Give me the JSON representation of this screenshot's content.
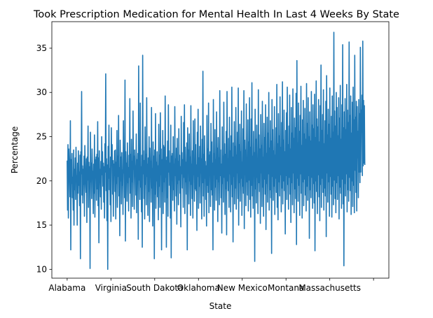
{
  "chart_data": {
    "type": "line",
    "title": "Took Prescription Medication for Mental Health In Last 4 Weeks By State",
    "xlabel": "State",
    "ylabel": "Percentage",
    "ylim": [
      9,
      38
    ],
    "yticks": [
      10,
      15,
      20,
      25,
      30,
      35
    ],
    "x_tick_labels": [
      "Alabama",
      "Virginia",
      "South Dakota",
      "Oklahoma",
      "New Mexico",
      "Montana",
      "Massachusetts",
      ""
    ],
    "x_tick_positions": [
      0,
      200,
      400,
      600,
      800,
      1000,
      1200,
      1400
    ],
    "xlim": [
      -70,
      1470
    ],
    "grid": false,
    "legend": "none",
    "line_color": "#1f77b4",
    "series": [
      {
        "values": [
          22.3,
          16.7,
          24.1,
          15.8,
          23.6,
          21.8,
          20.7,
          18.2,
          26.8,
          12.2,
          22.4,
          19.7,
          23.1,
          18.1,
          20.4,
          16.7,
          23.5,
          15.0,
          21.3,
          19.0,
          22.6,
          17.9,
          23.8,
          20.2,
          20.6,
          15.0,
          22.0,
          18.6,
          23.4,
          19.5,
          21.0,
          17.2,
          22.9,
          11.2,
          23.3,
          20.8,
          30.1,
          18.4,
          21.7,
          17.5,
          21.3,
          19.6,
          22.8,
          16.0,
          24.0,
          21.4,
          20.0,
          18.7,
          22.5,
          15.3,
          22.7,
          20.1,
          26.2,
          17.0,
          22.1,
          19.3,
          21.6,
          10.1,
          25.5,
          19.9,
          22.0,
          18.0,
          23.6,
          20.6,
          21.1,
          16.3,
          21.9,
          18.6,
          25.2,
          15.9,
          22.4,
          20.4,
          22.7,
          17.8,
          23.0,
          19.1,
          26.7,
          17.2,
          22.6,
          13.0,
          23.4,
          19.8,
          21.3,
          18.2,
          22.2,
          16.8,
          25.0,
          20.7,
          23.3,
          19.4,
          22.0,
          17.6,
          21.6,
          15.8,
          24.2,
          21.0,
          32.1,
          18.9,
          22.5,
          15.5,
          21.8,
          10.0,
          23.9,
          20.3,
          26.3,
          19.0,
          21.4,
          17.3,
          22.7,
          15.4,
          26.0,
          21.8,
          24.1,
          18.5,
          22.3,
          16.0,
          21.9,
          20.6,
          23.4,
          18.8,
          23.5,
          15.7,
          22.1,
          19.7,
          25.7,
          17.0,
          22.8,
          20.5,
          27.4,
          18.3,
          21.5,
          13.8,
          24.6,
          20.0,
          22.7,
          17.4,
          23.2,
          19.5,
          21.2,
          16.2,
          26.8,
          20.9,
          22.4,
          18.1,
          31.4,
          13.2,
          23.3,
          20.2,
          22.0,
          17.7,
          24.3,
          19.8,
          21.5,
          16.6,
          22.9,
          20.4,
          29.3,
          18.6,
          23.0,
          15.8,
          24.7,
          19.9,
          22.2,
          17.1,
          27.9,
          21.3,
          22.8,
          16.8,
          23.5,
          20.6,
          21.7,
          18.4,
          25.3,
          16.4,
          22.4,
          19.7,
          23.1,
          13.4,
          33.0,
          20.1,
          22.7,
          17.9,
          28.8,
          19.3,
          21.6,
          16.5,
          22.9,
          12.5,
          34.2,
          20.8,
          23.4,
          18.0,
          22.3,
          15.7,
          26.1,
          19.6,
          23.0,
          17.3,
          29.4,
          20.5,
          21.9,
          16.1,
          22.6,
          18.8,
          25.0,
          15.4,
          23.7,
          20.9,
          22.2,
          17.6,
          28.3,
          19.2,
          21.4,
          14.9,
          24.4,
          20.3,
          22.8,
          11.2,
          23.5,
          18.5,
          27.6,
          16.9,
          22.1,
          20.0,
          23.3,
          18.2,
          21.7,
          15.6,
          26.4,
          19.4,
          22.9,
          17.0,
          27.7,
          20.7,
          23.6,
          12.2,
          22.4,
          18.8,
          25.7,
          16.3,
          24.0,
          19.9,
          23.8,
          17.6,
          29.6,
          20.4,
          22.3,
          12.5,
          22.7,
          18.1,
          24.5,
          16.0,
          28.6,
          21.0,
          23.4,
          19.5,
          22.0,
          15.8,
          26.3,
          11.3,
          22.8,
          20.2,
          23.1,
          17.8,
          25.0,
          19.0,
          21.9,
          16.6,
          28.4,
          20.6,
          22.5,
          18.3,
          23.7,
          15.1,
          24.8,
          19.7,
          22.2,
          17.3,
          25.9,
          20.1,
          22.9,
          18.6,
          21.6,
          14.8,
          27.3,
          20.8,
          23.2,
          19.2,
          22.4,
          17.0,
          26.6,
          20.4,
          28.6,
          16.3,
          23.8,
          19.9,
          22.1,
          18.5,
          24.3,
          12.2,
          26.0,
          21.1,
          23.5,
          17.4,
          25.3,
          20.0,
          22.7,
          16.1,
          28.5,
          19.6,
          21.9,
          18.0,
          23.4,
          15.8,
          26.8,
          20.7,
          22.3,
          17.7,
          27.0,
          19.1,
          24.1,
          18.9,
          21.8,
          14.4,
          25.5,
          20.5,
          28.1,
          16.9,
          22.6,
          19.4,
          23.9,
          17.5,
          26.2,
          20.9,
          22.5,
          15.7,
          24.7,
          19.8,
          32.4,
          18.3,
          23.0,
          16.0,
          25.1,
          20.3,
          22.2,
          17.9,
          21.7,
          14.9,
          27.4,
          19.5,
          23.6,
          18.7,
          28.8,
          16.4,
          22.9,
          20.8,
          23.3,
          17.1,
          26.5,
          19.0,
          24.4,
          18.4,
          22.0,
          12.2,
          29.2,
          20.7,
          23.1,
          16.7,
          25.8,
          19.3,
          22.4,
          17.8,
          27.8,
          20.2,
          23.7,
          15.4,
          24.9,
          19.9,
          22.6,
          17.3,
          30.2,
          20.6,
          23.5,
          18.1,
          21.9,
          14.1,
          26.1,
          19.7,
          22.8,
          17.6,
          28.9,
          20.4,
          24.2,
          16.2,
          23.0,
          19.1,
          25.6,
          13.9,
          30.1,
          20.0,
          22.5,
          18.9,
          24.8,
          17.0,
          27.2,
          20.8,
          23.4,
          16.5,
          25.1,
          19.6,
          30.6,
          18.2,
          22.7,
          13.1,
          24.3,
          20.5,
          26.7,
          17.4,
          23.9,
          19.2,
          28.3,
          16.8,
          22.9,
          20.9,
          25.5,
          18.0,
          30.5,
          15.0,
          24.1,
          19.8,
          26.4,
          17.7,
          23.3,
          20.3,
          27.9,
          16.1,
          22.1,
          19.4,
          25.9,
          18.6,
          30.2,
          14.6,
          24.6,
          20.7,
          23.5,
          17.2,
          28.7,
          19.9,
          22.6,
          18.4,
          26.9,
          16.6,
          24.4,
          20.1,
          29.4,
          17.9,
          23.8,
          15.9,
          27.0,
          19.5,
          31.1,
          18.3,
          22.8,
          16.9,
          25.6,
          20.6,
          23.2,
          10.9,
          28.1,
          19.1,
          24.7,
          17.5,
          26.3,
          20.4,
          22.4,
          16.3,
          30.3,
          19.8,
          25.2,
          18.8,
          23.6,
          15.2,
          27.5,
          20.9,
          24.0,
          17.1,
          29.0,
          19.3,
          22.7,
          16.0,
          26.5,
          20.2,
          24.9,
          18.5,
          28.6,
          14.5,
          23.1,
          19.7,
          27.2,
          17.6,
          25.4,
          20.8,
          30.0,
          16.7,
          23.7,
          19.0,
          26.8,
          18.1,
          24.5,
          11.8,
          29.2,
          20.5,
          25.8,
          17.8,
          23.4,
          19.4,
          28.4,
          16.2,
          22.9,
          20.3,
          26.0,
          18.7,
          30.9,
          17.0,
          24.2,
          15.6,
          27.6,
          19.9,
          25.1,
          18.3,
          29.5,
          20.7,
          23.8,
          16.5,
          26.6,
          19.2,
          31.2,
          17.4,
          24.6,
          20.0,
          28.0,
          18.9,
          23.3,
          14.0,
          25.7,
          20.6,
          27.7,
          17.9,
          30.6,
          19.6,
          24.1,
          16.8,
          26.2,
          20.4,
          29.7,
          18.5,
          23.6,
          15.3,
          28.3,
          19.8,
          25.4,
          17.3,
          30.4,
          20.9,
          24.8,
          16.4,
          27.1,
          19.1,
          26.0,
          18.0,
          29.9,
          12.8,
          33.6,
          20.3,
          24.3,
          17.7,
          28.8,
          19.5,
          25.6,
          16.1,
          27.4,
          20.8,
          30.7,
          18.6,
          24.0,
          15.8,
          26.9,
          19.9,
          29.1,
          17.2,
          25.3,
          20.2,
          28.2,
          18.4,
          24.7,
          16.6,
          31.0,
          19.4,
          26.5,
          17.8,
          29.4,
          20.6,
          25.0,
          13.5,
          27.8,
          19.0,
          24.5,
          18.1,
          30.1,
          20.4,
          26.3,
          16.9,
          28.6,
          19.7,
          25.9,
          17.5,
          29.8,
          12.1,
          24.9,
          20.0,
          31.3,
          18.8,
          27.0,
          16.3,
          26.1,
          20.7,
          29.2,
          18.2,
          24.4,
          15.5,
          28.5,
          19.6,
          33.1,
          17.0,
          25.7,
          20.3,
          27.5,
          18.7,
          30.3,
          16.7,
          24.2,
          19.2,
          26.8,
          18.3,
          29.0,
          13.7,
          31.9,
          20.9,
          25.2,
          17.6,
          28.1,
          19.9,
          26.4,
          16.0,
          30.5,
          20.5,
          24.8,
          18.5,
          27.3,
          15.9,
          29.6,
          19.4,
          25.5,
          17.3,
          36.8,
          20.1,
          27.9,
          18.0,
          26.2,
          16.4,
          30.0,
          19.8,
          28.3,
          17.9,
          25.1,
          20.6,
          29.4,
          15.7,
          27.1,
          19.3,
          30.8,
          18.6,
          24.7,
          16.9,
          28.6,
          20.2,
          35.4,
          17.4,
          26.0,
          10.4,
          27.8,
          19.7,
          29.3,
          18.3,
          25.8,
          20.8,
          30.9,
          16.5,
          28.0,
          19.0,
          26.6,
          17.7,
          35.7,
          20.4,
          27.4,
          18.9,
          29.6,
          16.2,
          25.4,
          20.0,
          28.9,
          17.1,
          30.6,
          19.5,
          26.9,
          16.4,
          34.2,
          21.2,
          27.2,
          18.7,
          29.0,
          16.6,
          28.4,
          22.6,
          25.6,
          18.1,
          29.2,
          21.0,
          27.6,
          19.8,
          35.1,
          21.0,
          28.0,
          25.5,
          29.7,
          20.6,
          35.8,
          21.7,
          29.1,
          22.0,
          28.5,
          21.8
        ]
      }
    ]
  }
}
